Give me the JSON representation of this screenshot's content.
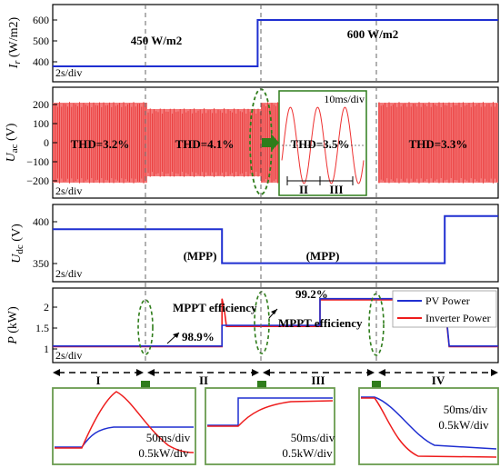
{
  "colors": {
    "pv": "#1f2fd1",
    "inverter": "#ee1c1c",
    "arrow": "#2f7d1b",
    "frame": "#6a9b4f",
    "ac_fill": "#f36b6b"
  },
  "chart_data": [
    {
      "type": "line",
      "ylabel": "Ir (W/m2)",
      "ylim": [
        400,
        650
      ],
      "yticks": [
        "400",
        "500",
        "600"
      ],
      "timescale": "2s/div",
      "x": [
        0,
        4.6,
        4.6,
        10
      ],
      "series": [
        {
          "values": [
            450,
            450,
            600,
            600
          ]
        }
      ],
      "annotations": [
        "450 W/m2",
        "600 W/m2"
      ]
    },
    {
      "type": "area",
      "ylabel": "Uac (V)",
      "ylim": [
        -220,
        220
      ],
      "yticks": [
        "200",
        "100",
        "0",
        "−100",
        "−200"
      ],
      "timescale": "2s/div",
      "thd": [
        "THD=3.2%",
        "THD=4.1%",
        "THD=3.5%",
        "THD=3.3%"
      ],
      "inset": {
        "timescale": "10ms/div",
        "labels": [
          "II",
          "III"
        ]
      }
    },
    {
      "type": "line",
      "ylabel": "Udc (V)",
      "ylim": [
        325,
        425
      ],
      "yticks": [
        "400",
        "350"
      ],
      "timescale": "2s/div",
      "x": [
        0,
        3.8,
        3.8,
        8.8,
        8.8,
        10
      ],
      "series": [
        {
          "values": [
            393,
            393,
            349,
            349,
            410,
            410
          ]
        }
      ],
      "annotations": [
        "(MPP)",
        "(MPP)"
      ]
    },
    {
      "type": "line",
      "ylabel": "P (kW)",
      "ylim": [
        0.9,
        2.3
      ],
      "yticks": [
        "2",
        "1.5",
        "1"
      ],
      "timescale": "2s/div",
      "x": [
        0,
        3.8,
        3.8,
        3.85,
        3.9,
        6.0,
        6.0,
        8.8,
        8.8,
        8.9,
        10
      ],
      "series": [
        {
          "name": "PV Power",
          "values": [
            1.21,
            1.21,
            1.6,
            1.6,
            1.6,
            1.6,
            2.1,
            2.1,
            2.1,
            1.21,
            1.21
          ]
        },
        {
          "name": "Inverter Power",
          "values": [
            1.2,
            1.2,
            2.1,
            1.9,
            1.58,
            1.58,
            2.08,
            2.08,
            2.0,
            1.2,
            1.2
          ]
        }
      ],
      "annotations": [
        "MPPT efficiency",
        "98.9%",
        "99.2%",
        "MPPT efficiency"
      ]
    }
  ],
  "phases": [
    "I",
    "II",
    "III",
    "IV"
  ],
  "zooms": [
    {
      "line1": "50ms/div",
      "line2": "0.5kW/div"
    },
    {
      "line1": "50ms/div",
      "line2": "0.5kW/div"
    },
    {
      "line1": "50ms/div",
      "line2": "0.5kW/div"
    }
  ]
}
